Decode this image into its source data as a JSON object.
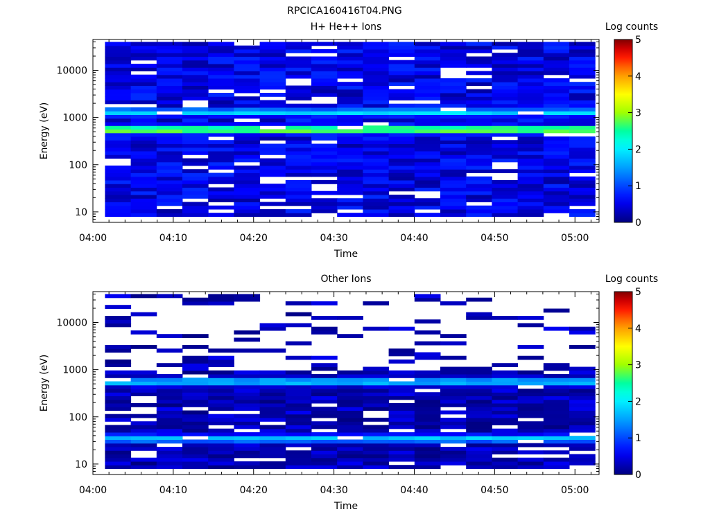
{
  "figure": {
    "title": "RPCICA160416T04.PNG"
  },
  "chart_data": [
    {
      "type": "heatmap",
      "title": "H+ He++ Ions",
      "xlabel": "Time",
      "ylabel": "Energy (eV)",
      "y_scale": "log",
      "x_ticks": [
        "04:00",
        "04:10",
        "04:20",
        "04:30",
        "04:40",
        "04:50",
        "05:00"
      ],
      "y_ticks": [
        "10",
        "100",
        "1000",
        "10000"
      ],
      "xlim": [
        "04:00",
        "05:03"
      ],
      "ylim": [
        6,
        45000
      ],
      "data_time_range": [
        "04:01.5",
        "05:02.5"
      ],
      "colorbar": {
        "label": "Log counts",
        "range": [
          0,
          5
        ],
        "ticks": [
          "0",
          "1",
          "2",
          "3",
          "4",
          "5"
        ]
      },
      "features": {
        "background_level": 0.5,
        "bands": [
          {
            "energy_eV": 1300,
            "peak_log_counts": 1.9
          },
          {
            "energy_eV": 560,
            "peak_log_counts": 3.1
          }
        ]
      }
    },
    {
      "type": "heatmap",
      "title": "Other Ions",
      "xlabel": "Time",
      "ylabel": "Energy (eV)",
      "y_scale": "log",
      "x_ticks": [
        "04:00",
        "04:10",
        "04:20",
        "04:30",
        "04:40",
        "04:50",
        "05:00"
      ],
      "y_ticks": [
        "10",
        "100",
        "1000",
        "10000"
      ],
      "xlim": [
        "04:00",
        "05:03"
      ],
      "ylim": [
        6,
        45000
      ],
      "data_time_range": [
        "04:01.5",
        "05:02.5"
      ],
      "colorbar": {
        "label": "Log counts",
        "range": [
          0,
          5
        ],
        "ticks": [
          "0",
          "1",
          "2",
          "3",
          "4",
          "5"
        ]
      },
      "features": {
        "background_level": 0.2,
        "bands": [
          {
            "energy_eV": 560,
            "peak_log_counts": 1.8
          },
          {
            "energy_eV": 35,
            "peak_log_counts": 1.8
          }
        ]
      }
    }
  ]
}
